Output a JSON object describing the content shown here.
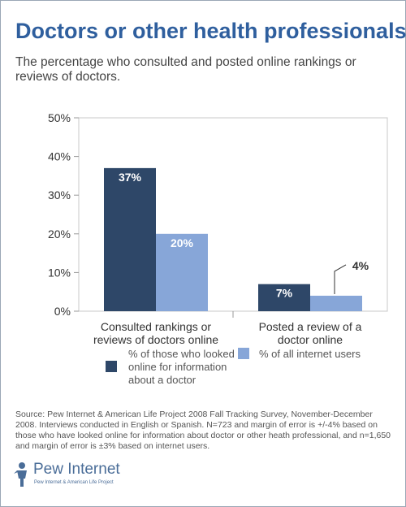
{
  "title": "Doctors or other health professionals",
  "subtitle": "The percentage who consulted and posted online rankings or reviews of doctors.",
  "colors": {
    "dark": "#2e4768",
    "light": "#87a6d8",
    "accent": "#2f5f9e"
  },
  "chart_data": {
    "type": "bar",
    "categories": [
      "Consulted rankings or reviews of doctors online",
      "Posted a review of a doctor online"
    ],
    "series": [
      {
        "name": "% of those who looked online for information about a doctor",
        "values": [
          37,
          7
        ],
        "labels": [
          "37%",
          "7%"
        ]
      },
      {
        "name": "% of all internet users",
        "values": [
          20,
          4
        ],
        "labels": [
          "20%",
          "4%"
        ]
      }
    ],
    "yticks": [
      "0%",
      "10%",
      "20%",
      "30%",
      "40%",
      "50%"
    ],
    "ylim": [
      0,
      50
    ],
    "legend": "bottom"
  },
  "category_lines": [
    [
      "Consulted rankings or",
      "reviews of doctors online"
    ],
    [
      "Posted a review of a",
      "doctor online"
    ]
  ],
  "legend": {
    "series1": [
      "% of those who looked",
      "online for information",
      "about a doctor"
    ],
    "series2": "% of all internet users"
  },
  "source_note": "Source: Pew Internet & American Life Project 2008 Fall Tracking Survey, November-December 2008. Interviews conducted in English or Spanish. N=723 and margin of error is +/-4% based on those who have looked online for information about doctor or other heath professional, and n=1,650 and margin of error is ±3% based on internet users.",
  "logo": {
    "name": "Pew Internet",
    "sub": "Pew Internet & American Life Project"
  }
}
